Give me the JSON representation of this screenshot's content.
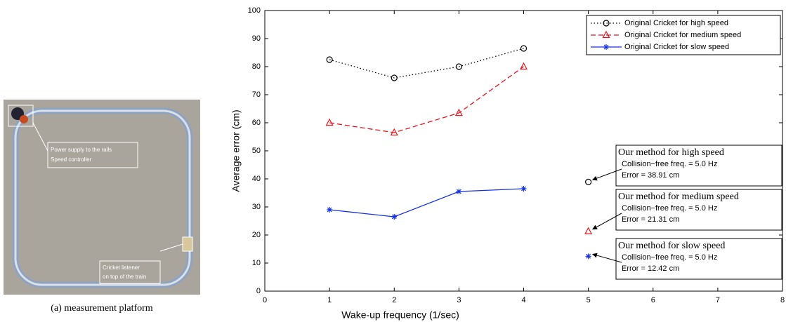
{
  "photo": {
    "caption": "(a) measurement platform",
    "labels": [
      [
        "Power supply to the rails",
        "Speed controller"
      ],
      [
        "Cricket listener",
        "on top of the train"
      ]
    ]
  },
  "chart_data": {
    "type": "line",
    "xlabel": "Wake-up frequency (1/sec)",
    "ylabel": "Average error (cm)",
    "x": [
      1,
      2,
      3,
      4
    ],
    "series": [
      {
        "name": "Original Cricket for high speed",
        "color": "#000000",
        "dash": "dotted",
        "marker": "circle",
        "values": [
          82.5,
          76,
          80,
          86.5
        ]
      },
      {
        "name": "Original Cricket for medium speed",
        "color": "#e8141e",
        "dash": "dashed",
        "marker": "triangle",
        "values": [
          60,
          56.5,
          63.5,
          80
        ]
      },
      {
        "name": "Original Cricket for slow speed",
        "color": "#1432e0",
        "dash": "solid",
        "marker": "star",
        "values": [
          29,
          26.5,
          35.5,
          36.5
        ]
      }
    ],
    "annotations": [
      {
        "x": 5,
        "y": 38.91,
        "color": "#000000",
        "marker": "circle",
        "lines": [
          "Our method for high speed",
          "Collision−free freq. = 5.0 Hz",
          "Error = 38.91 cm"
        ]
      },
      {
        "x": 5,
        "y": 21.31,
        "color": "#e8141e",
        "marker": "triangle",
        "lines": [
          "Our method for medium speed",
          "Collision−free freq. = 5.0 Hz",
          "Error = 21.31 cm"
        ]
      },
      {
        "x": 5,
        "y": 12.42,
        "color": "#1432e0",
        "marker": "star",
        "lines": [
          "Our method for slow speed",
          "Collision−free freq. = 5.0 Hz",
          "Error = 12.42 cm"
        ]
      }
    ],
    "xlim": [
      0,
      8
    ],
    "xticks": [
      0,
      1,
      2,
      3,
      4,
      5,
      6,
      7,
      8
    ],
    "ylim": [
      0,
      100
    ],
    "yticks": [
      0,
      10,
      20,
      30,
      40,
      50,
      60,
      70,
      80,
      90,
      100
    ],
    "legend": "upper right"
  }
}
